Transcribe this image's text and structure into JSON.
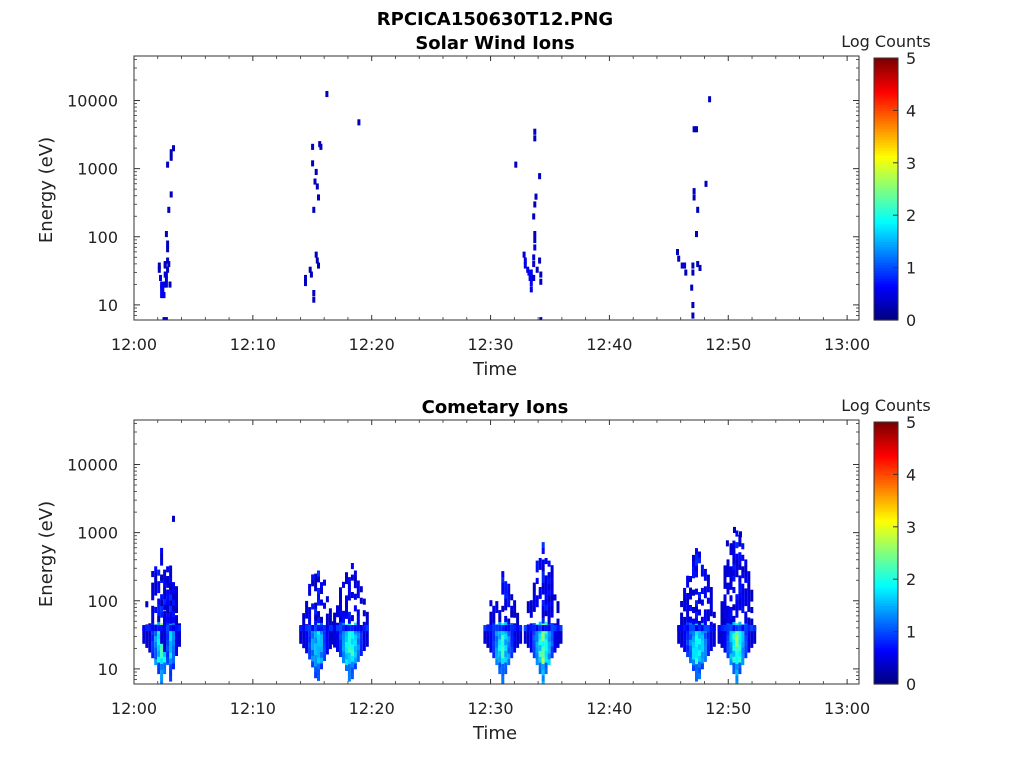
{
  "figure_title": "RPCICA150630T12.PNG",
  "chart_data": [
    {
      "type": "heatmap",
      "title": "Solar Wind Ions",
      "xlabel": "Time",
      "ylabel": "Energy (eV)",
      "x_ticks": [
        "12:00",
        "12:10",
        "12:20",
        "12:30",
        "12:40",
        "12:50",
        "13:00"
      ],
      "y_ticks": [
        "10",
        "100",
        "1000",
        "10000"
      ],
      "y_scale": "log",
      "ylim": [
        6,
        45000
      ],
      "xlim_minutes": [
        0,
        61
      ],
      "colorbar": {
        "label": "Log Counts",
        "ticks": [
          "0",
          "1",
          "2",
          "3",
          "4",
          "5"
        ],
        "range": [
          0,
          5
        ],
        "colormap": "jet"
      },
      "cells": [
        [
          2.0,
          38,
          0.3
        ],
        [
          2.0,
          33,
          0.3
        ],
        [
          2.1,
          25,
          0.5
        ],
        [
          2.2,
          20,
          0.6
        ],
        [
          2.2,
          17,
          0.6
        ],
        [
          2.2,
          14,
          0.6
        ],
        [
          2.3,
          20,
          0.6
        ],
        [
          2.3,
          17,
          0.6
        ],
        [
          2.3,
          14,
          0.6
        ],
        [
          2.4,
          20,
          0.5
        ],
        [
          2.4,
          14,
          0.5
        ],
        [
          2.5,
          20,
          0.5
        ],
        [
          2.5,
          28,
          0.4
        ],
        [
          2.5,
          38,
          0.3
        ],
        [
          2.6,
          24,
          0.4
        ],
        [
          2.6,
          20,
          0.4
        ],
        [
          2.6,
          28,
          0.4
        ],
        [
          2.7,
          33,
          0.3
        ],
        [
          2.7,
          80,
          0.3
        ],
        [
          2.7,
          66,
          0.3
        ],
        [
          2.7,
          45,
          0.3
        ],
        [
          2.8,
          40,
          0.3
        ],
        [
          2.9,
          20,
          0.3
        ],
        [
          2.5,
          40,
          0.3
        ],
        [
          2.6,
          110,
          0.3
        ],
        [
          2.8,
          250,
          0.3
        ],
        [
          3.0,
          420,
          0.3
        ],
        [
          2.7,
          1150,
          0.3
        ],
        [
          3.0,
          1450,
          0.3
        ],
        [
          3.0,
          1750,
          0.3
        ],
        [
          3.2,
          2000,
          0.3
        ],
        [
          2.6,
          6,
          0.3
        ],
        [
          2.4,
          6,
          0.3
        ],
        [
          14.3,
          25,
          0.3
        ],
        [
          14.3,
          21,
          0.3
        ],
        [
          14.7,
          33,
          0.3
        ],
        [
          14.8,
          28,
          0.3
        ],
        [
          15.0,
          15,
          0.3
        ],
        [
          15.0,
          12,
          0.3
        ],
        [
          15.2,
          55,
          0.3
        ],
        [
          15.3,
          45,
          0.3
        ],
        [
          15.4,
          38,
          0.3
        ],
        [
          15.0,
          250,
          0.3
        ],
        [
          15.4,
          380,
          0.3
        ],
        [
          15.1,
          650,
          0.3
        ],
        [
          15.3,
          550,
          0.3
        ],
        [
          15.2,
          900,
          0.3
        ],
        [
          14.9,
          1200,
          0.3
        ],
        [
          14.9,
          2100,
          0.3
        ],
        [
          15.5,
          2300,
          0.3
        ],
        [
          15.6,
          2100,
          0.3
        ],
        [
          16.1,
          12500,
          0.3
        ],
        [
          18.8,
          4800,
          0.3
        ],
        [
          32.0,
          1150,
          0.3
        ],
        [
          32.7,
          55,
          0.4
        ],
        [
          32.8,
          45,
          0.5
        ],
        [
          32.8,
          38,
          0.5
        ],
        [
          33.0,
          33,
          0.5
        ],
        [
          33.1,
          30,
          0.6
        ],
        [
          33.2,
          25,
          0.6
        ],
        [
          33.3,
          30,
          0.6
        ],
        [
          33.3,
          21,
          0.6
        ],
        [
          33.3,
          17,
          0.5
        ],
        [
          33.4,
          25,
          0.5
        ],
        [
          33.5,
          25,
          0.4
        ],
        [
          33.5,
          40,
          0.4
        ],
        [
          33.5,
          50,
          0.4
        ],
        [
          33.6,
          70,
          0.4
        ],
        [
          33.6,
          90,
          0.3
        ],
        [
          33.8,
          33,
          0.3
        ],
        [
          34.0,
          45,
          0.3
        ],
        [
          34.1,
          28,
          0.3
        ],
        [
          34.1,
          22,
          0.3
        ],
        [
          33.6,
          110,
          0.3
        ],
        [
          33.5,
          200,
          0.3
        ],
        [
          33.6,
          300,
          0.3
        ],
        [
          33.7,
          390,
          0.3
        ],
        [
          34.0,
          780,
          0.3
        ],
        [
          33.6,
          2800,
          0.3
        ],
        [
          33.6,
          3500,
          0.3
        ],
        [
          34.1,
          6,
          0.3
        ],
        [
          45.6,
          60,
          0.3
        ],
        [
          45.7,
          48,
          0.3
        ],
        [
          46.0,
          38,
          0.4
        ],
        [
          46.2,
          38,
          0.4
        ],
        [
          46.3,
          30,
          0.3
        ],
        [
          46.9,
          38,
          0.3
        ],
        [
          46.9,
          30,
          0.3
        ],
        [
          46.8,
          18,
          0.3
        ],
        [
          46.9,
          10,
          0.3
        ],
        [
          46.9,
          7,
          0.3
        ],
        [
          47.3,
          40,
          0.3
        ],
        [
          47.5,
          35,
          0.3
        ],
        [
          47.2,
          110,
          0.3
        ],
        [
          47.3,
          250,
          0.3
        ],
        [
          47.0,
          380,
          0.3
        ],
        [
          47.0,
          470,
          0.3
        ],
        [
          47.2,
          3800,
          0.3
        ],
        [
          47.0,
          3800,
          0.3
        ],
        [
          48.0,
          600,
          0.3
        ],
        [
          48.3,
          10500,
          0.3
        ]
      ]
    },
    {
      "type": "heatmap",
      "title": "Cometary Ions",
      "xlabel": "Time",
      "ylabel": "Energy (eV)",
      "x_ticks": [
        "12:00",
        "12:10",
        "12:20",
        "12:30",
        "12:40",
        "12:50",
        "13:00"
      ],
      "y_ticks": [
        "10",
        "100",
        "1000",
        "10000"
      ],
      "y_scale": "log",
      "ylim": [
        6,
        45000
      ],
      "xlim_minutes": [
        0,
        61
      ],
      "colorbar": {
        "label": "Log Counts",
        "ticks": [
          "0",
          "1",
          "2",
          "3",
          "4",
          "5"
        ],
        "range": [
          0,
          5
        ],
        "colormap": "jet"
      },
      "bursts": [
        {
          "center": 2.2,
          "core_half_width": 1.0,
          "arm_half_width": 1.5,
          "peak": 2.1,
          "top_energy": 560
        },
        {
          "center": 3.0,
          "core_half_width": 0.5,
          "arm_half_width": 0.8,
          "peak": 1.6,
          "top_energy": 380
        },
        {
          "center": 15.3,
          "core_half_width": 1.0,
          "arm_half_width": 1.4,
          "peak": 1.8,
          "top_energy": 380
        },
        {
          "center": 18.1,
          "core_half_width": 1.2,
          "arm_half_width": 1.6,
          "peak": 2.2,
          "top_energy": 380
        },
        {
          "center": 30.9,
          "core_half_width": 1.1,
          "arm_half_width": 1.5,
          "peak": 2.0,
          "top_energy": 280
        },
        {
          "center": 34.3,
          "core_half_width": 1.1,
          "arm_half_width": 1.5,
          "peak": 2.4,
          "top_energy": 700
        },
        {
          "center": 47.3,
          "core_half_width": 1.2,
          "arm_half_width": 1.6,
          "peak": 2.0,
          "top_energy": 600
        },
        {
          "center": 50.6,
          "core_half_width": 1.1,
          "arm_half_width": 1.5,
          "peak": 2.3,
          "top_energy": 1150
        }
      ],
      "isolated_cells": [
        [
          3.2,
          1600,
          0.3
        ],
        [
          2.2,
          220,
          0.3
        ],
        [
          49.8,
          700,
          0.3
        ],
        [
          50.9,
          950,
          0.3
        ],
        [
          50.4,
          1100,
          0.3
        ]
      ]
    }
  ],
  "colors": {
    "frame": "#333333",
    "tick": "#333333",
    "background": "#ffffff"
  }
}
